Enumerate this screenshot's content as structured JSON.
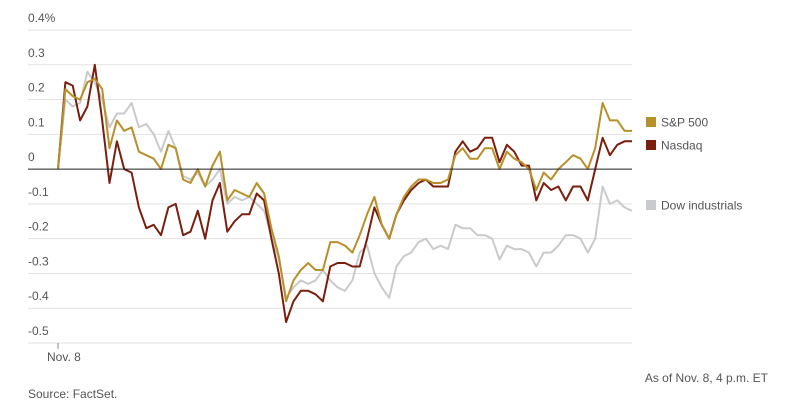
{
  "chart_data": {
    "type": "line",
    "source": "Source: FactSet.",
    "note": "As of Nov. 8, 4 p.m. ET",
    "categories": [
      "Nov. 8",
      null,
      null,
      null,
      null,
      null,
      null,
      null,
      null,
      null,
      null,
      null,
      null,
      null,
      null,
      null,
      null,
      null,
      null,
      null,
      null,
      null,
      null,
      null,
      null,
      null,
      null,
      null,
      null,
      null,
      null,
      null,
      null,
      null,
      null,
      null,
      null,
      null,
      null,
      null,
      null,
      null,
      null,
      null,
      null,
      null,
      null,
      null,
      null,
      null,
      null,
      null,
      null,
      null,
      null,
      null,
      null,
      null,
      null,
      null,
      null,
      null,
      null,
      null,
      null,
      null,
      null,
      null,
      null,
      null,
      null,
      null,
      null,
      null,
      null,
      null,
      null,
      null,
      null
    ],
    "series": [
      {
        "name": "S&P 500",
        "color": "#b8902a",
        "values": [
          0,
          0.23,
          0.21,
          0.2,
          0.25,
          0.26,
          0.23,
          0.06,
          0.14,
          0.11,
          0.12,
          0.05,
          0.04,
          0.03,
          0,
          0.07,
          0.06,
          -0.03,
          -0.04,
          0,
          -0.05,
          0.01,
          0.05,
          -0.09,
          -0.06,
          -0.07,
          -0.08,
          -0.04,
          -0.07,
          -0.17,
          -0.25,
          -0.38,
          -0.32,
          -0.29,
          -0.27,
          -0.29,
          -0.29,
          -0.21,
          -0.21,
          -0.22,
          -0.24,
          -0.19,
          -0.13,
          -0.08,
          -0.16,
          -0.2,
          -0.13,
          -0.08,
          -0.05,
          -0.03,
          -0.03,
          -0.04,
          -0.04,
          -0.03,
          0.04,
          0.06,
          0.03,
          0.03,
          0.06,
          0.06,
          0,
          0.05,
          0.03,
          0.02,
          0,
          -0.06,
          -0.01,
          -0.03,
          0,
          0.02,
          0.04,
          0.03,
          0,
          0.06,
          0.19,
          0.14,
          0.14,
          0.11,
          0.11
        ]
      },
      {
        "name": "Nasdaq",
        "color": "#7a1f0e",
        "values": [
          0,
          0.25,
          0.24,
          0.14,
          0.18,
          0.3,
          0.14,
          -0.04,
          0.08,
          0,
          -0.01,
          -0.11,
          -0.17,
          -0.16,
          -0.19,
          -0.11,
          -0.1,
          -0.19,
          -0.18,
          -0.12,
          -0.2,
          -0.09,
          -0.04,
          -0.18,
          -0.15,
          -0.13,
          -0.13,
          -0.07,
          -0.09,
          -0.2,
          -0.3,
          -0.44,
          -0.38,
          -0.35,
          -0.35,
          -0.36,
          -0.38,
          -0.28,
          -0.27,
          -0.27,
          -0.28,
          -0.28,
          -0.2,
          -0.11,
          -0.16,
          -0.2,
          -0.13,
          -0.09,
          -0.06,
          -0.04,
          -0.03,
          -0.05,
          -0.05,
          -0.05,
          0.05,
          0.08,
          0.05,
          0.06,
          0.09,
          0.09,
          0.02,
          0.07,
          0.05,
          0.01,
          0.01,
          -0.09,
          -0.04,
          -0.06,
          -0.05,
          -0.09,
          -0.05,
          -0.05,
          -0.09,
          0,
          0.09,
          0.04,
          0.07,
          0.08,
          0.08
        ]
      },
      {
        "name": "Dow industrials",
        "color": "#c8cacc",
        "values": [
          0,
          0.2,
          0.18,
          0.19,
          0.28,
          0.25,
          0.2,
          0.12,
          0.16,
          0.16,
          0.19,
          0.12,
          0.13,
          0.1,
          0.05,
          0.11,
          0.06,
          -0.02,
          -0.03,
          -0.01,
          -0.05,
          -0.03,
          0,
          -0.1,
          -0.08,
          -0.09,
          -0.08,
          -0.1,
          -0.12,
          -0.19,
          -0.26,
          -0.37,
          -0.34,
          -0.32,
          -0.33,
          -0.32,
          -0.29,
          -0.32,
          -0.34,
          -0.35,
          -0.32,
          -0.24,
          -0.22,
          -0.3,
          -0.34,
          -0.37,
          -0.28,
          -0.25,
          -0.24,
          -0.21,
          -0.2,
          -0.23,
          -0.22,
          -0.23,
          -0.16,
          -0.17,
          -0.17,
          -0.19,
          -0.19,
          -0.2,
          -0.26,
          -0.22,
          -0.23,
          -0.23,
          -0.24,
          -0.28,
          -0.24,
          -0.24,
          -0.22,
          -0.19,
          -0.19,
          -0.2,
          -0.24,
          -0.2,
          -0.05,
          -0.1,
          -0.09,
          -0.11,
          -0.12
        ]
      }
    ],
    "ylim": [
      -0.5,
      0.4
    ],
    "yticks": [
      {
        "value": 0.4,
        "label": "0.4%"
      },
      0.3,
      0.2,
      0.1,
      0,
      -0.1,
      -0.2,
      -0.3,
      -0.4,
      -0.5
    ],
    "grid": true
  }
}
